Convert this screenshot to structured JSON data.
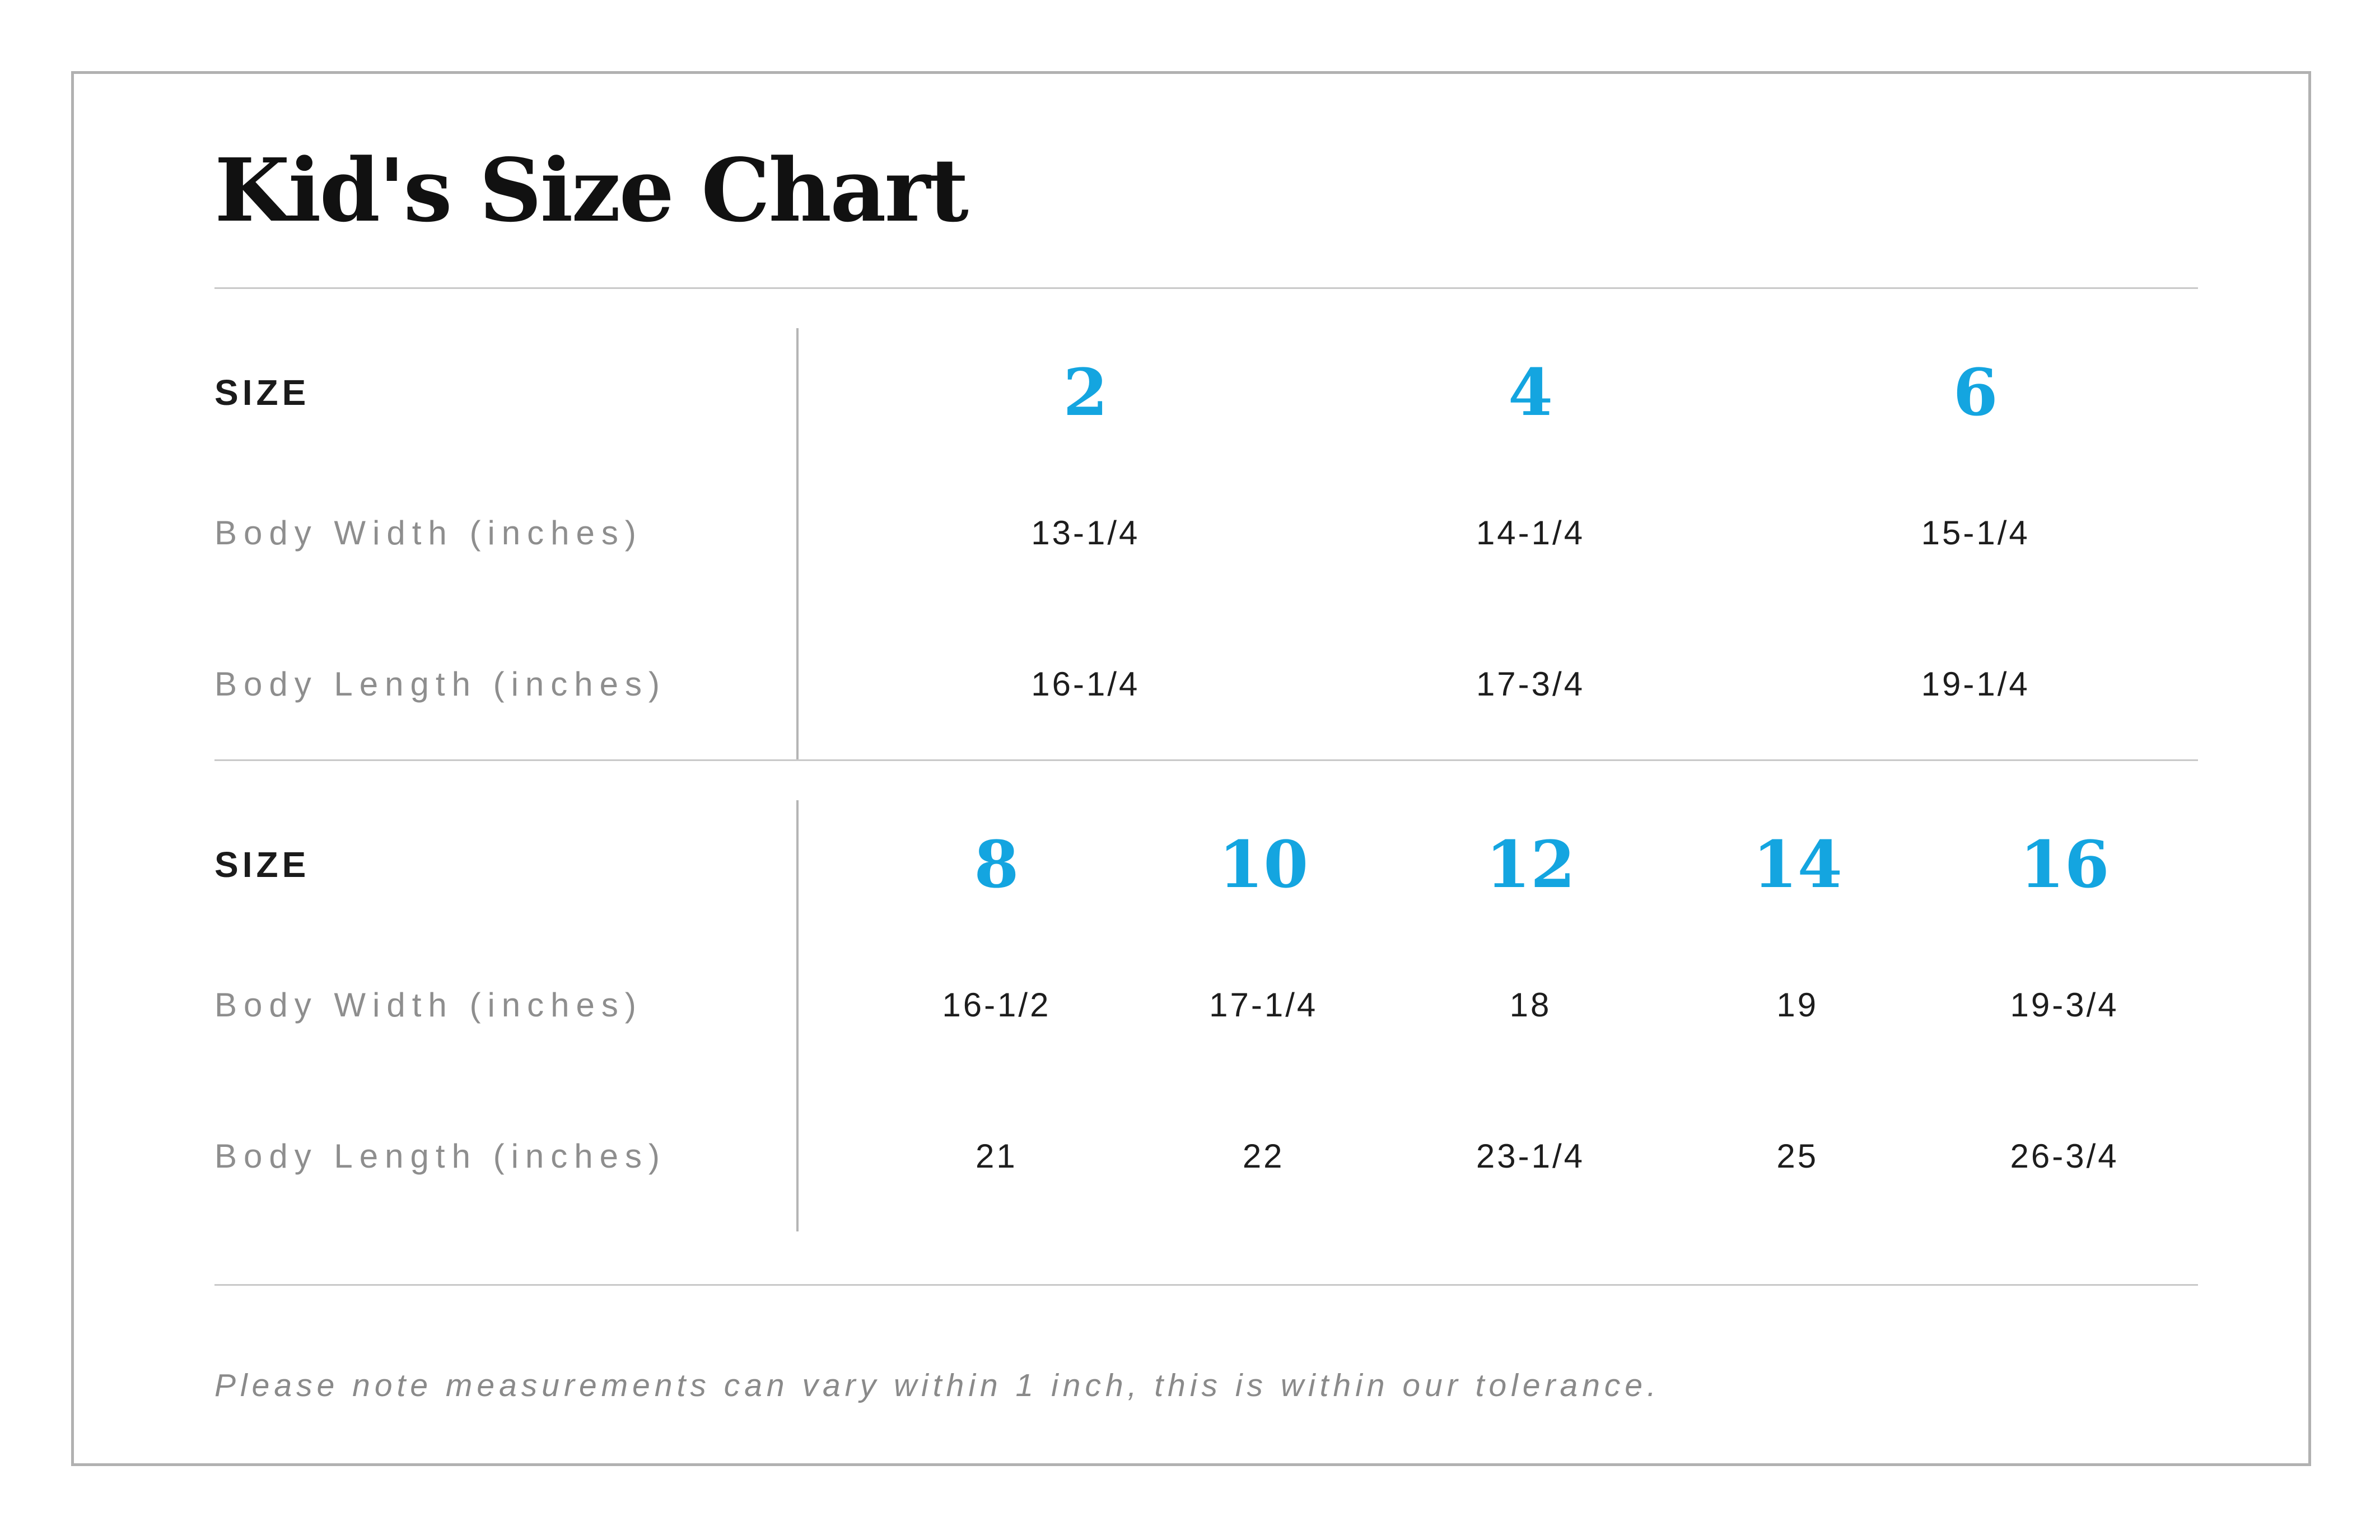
{
  "title": "Kid's Size Chart",
  "note": "Please note measurements can vary within 1 inch, this is within our tolerance.",
  "colors": {
    "accent_blue": "#14a5e0",
    "label_gray": "#8e8e8e",
    "value_black": "#1d1d1d",
    "card_border_gray": "#b1b1b1",
    "divider_gray": "#c9c9c9"
  },
  "chart_data": [
    {
      "type": "table",
      "size_header": "SIZE",
      "sizes": [
        "2",
        "4",
        "6"
      ],
      "rows": [
        {
          "label": "Body Width (inches)",
          "values": [
            "13-1/4",
            "14-1/4",
            "15-1/4"
          ]
        },
        {
          "label": "Body Length (inches)",
          "values": [
            "16-1/4",
            "17-3/4",
            "19-1/4"
          ]
        }
      ]
    },
    {
      "type": "table",
      "size_header": "SIZE",
      "sizes": [
        "8",
        "10",
        "12",
        "14",
        "16"
      ],
      "rows": [
        {
          "label": "Body Width (inches)",
          "values": [
            "16-1/2",
            "17-1/4",
            "18",
            "19",
            "19-3/4"
          ]
        },
        {
          "label": "Body Length (inches)",
          "values": [
            "21",
            "22",
            "23-1/4",
            "25",
            "26-3/4"
          ]
        }
      ]
    }
  ]
}
